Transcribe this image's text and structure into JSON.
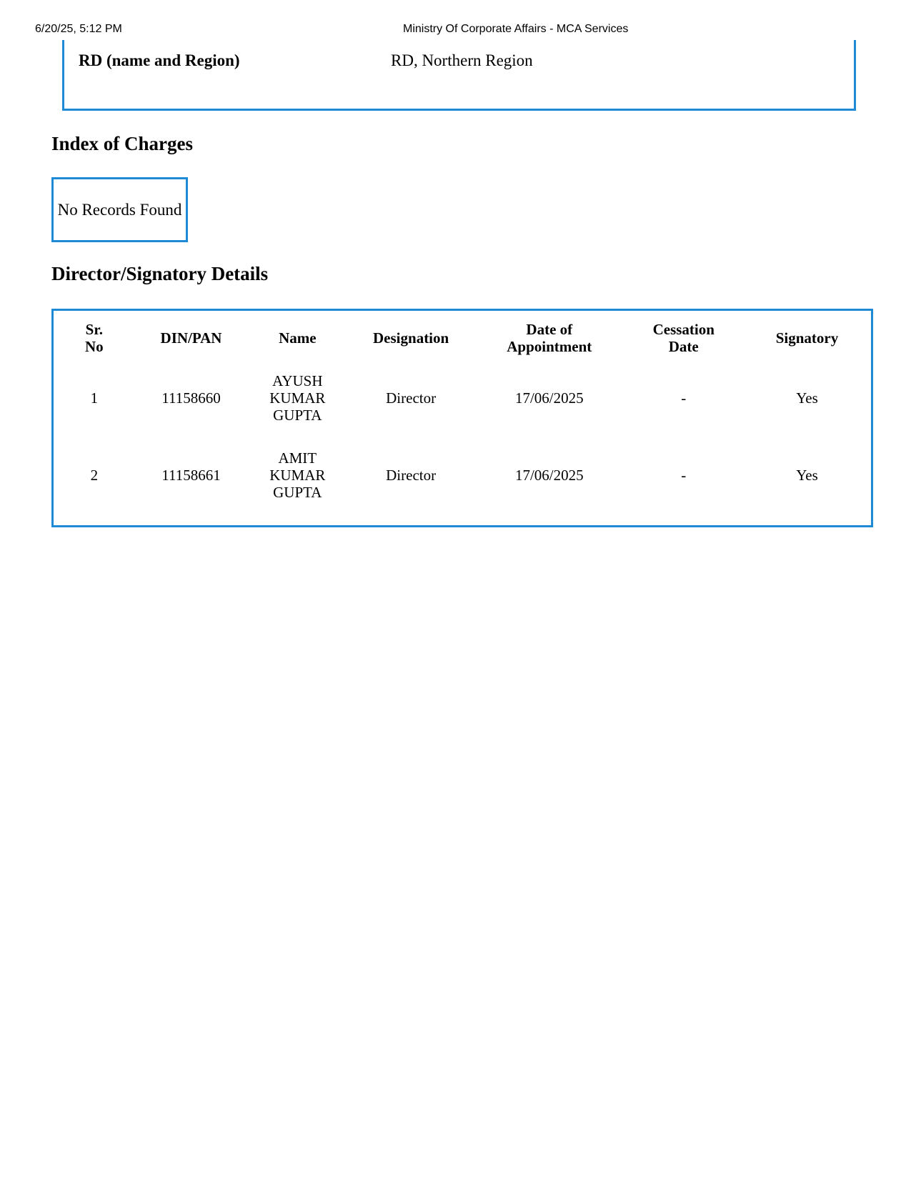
{
  "print_header": {
    "datetime": "6/20/25, 5:12 PM",
    "title": "Ministry Of Corporate Affairs - MCA Services"
  },
  "rd": {
    "label": "RD (name and Region)",
    "value": "RD, Northern Region"
  },
  "charges": {
    "heading": "Index of Charges",
    "empty_text": "No Records Found"
  },
  "directors": {
    "heading": "Director/Signatory Details",
    "columns": [
      "Sr. No",
      "DIN/PAN",
      "Name",
      "Designation",
      "Date of Appointment",
      "Cessation Date",
      "Signatory"
    ],
    "rows": [
      [
        "1",
        "11158660",
        "AYUSH KUMAR GUPTA",
        "Director",
        "17/06/2025",
        "-",
        "Yes"
      ],
      [
        "2",
        "11158661",
        "AMIT KUMAR GUPTA",
        "Director",
        "17/06/2025",
        "-",
        "Yes"
      ]
    ]
  },
  "colors": {
    "border": "#1e8ad6"
  }
}
